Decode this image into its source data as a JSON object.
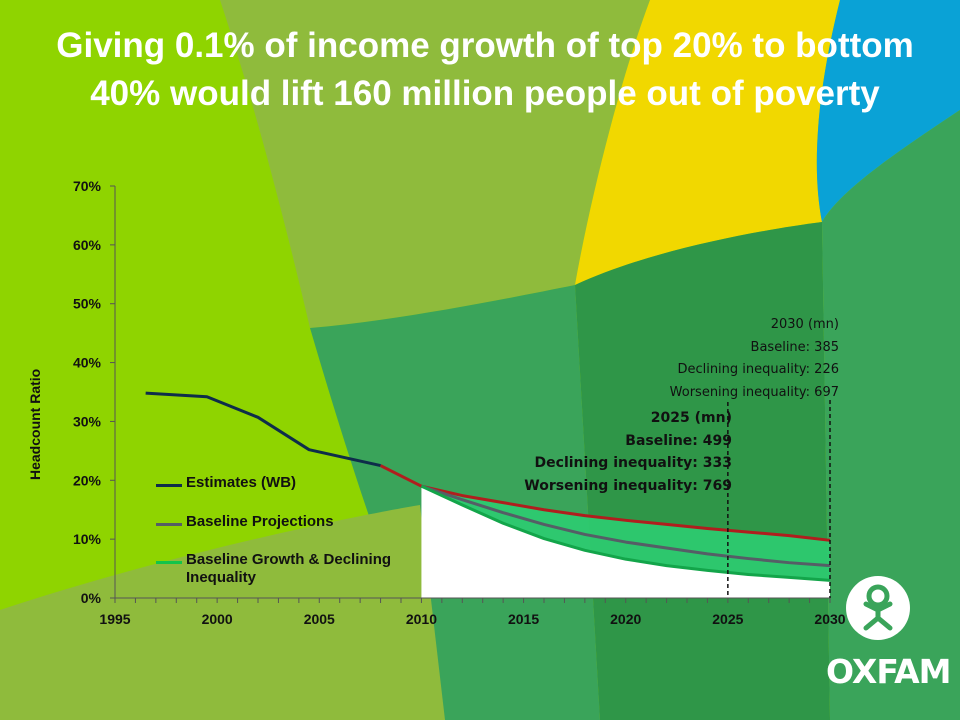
{
  "title": "Giving 0.1% of income growth of top 20% to bottom 40% would lift 160 million people out of poverty",
  "brand": {
    "name": "OXFAM",
    "colors": {
      "light_green": "#8fd400",
      "mid_green": "#8fbb3c",
      "dark_green": "#3aa45a",
      "forest_green": "#2f9648",
      "yellow": "#f1d800",
      "blue": "#0aa2d6"
    }
  },
  "chart_data": {
    "type": "line",
    "ylabel": "Headcount Ratio",
    "xlabel": "",
    "xlim": [
      1995,
      2030
    ],
    "ylim": [
      0,
      0.7
    ],
    "x_ticks": [
      "1995",
      "2000",
      "2005",
      "2010",
      "2015",
      "2020",
      "2025",
      "2030"
    ],
    "y_ticks": [
      "0%",
      "10%",
      "20%",
      "30%",
      "40%",
      "50%",
      "60%",
      "70%"
    ],
    "legend": [
      "Estimates (WB)",
      "Baseline Projections",
      "Baseline Growth & Declining Inequality"
    ],
    "series": [
      {
        "name": "Estimates (WB)",
        "color": "#0e2d4a",
        "x": [
          1996.5,
          1999.5,
          2002,
          2004.5,
          2008
        ],
        "y": [
          0.348,
          0.342,
          0.307,
          0.252,
          0.225
        ]
      },
      {
        "name": "Worsening inequality",
        "color": "#b01e1e",
        "x": [
          2008,
          2010,
          2012,
          2014,
          2016,
          2018,
          2020,
          2022,
          2024,
          2026,
          2028,
          2030
        ],
        "y": [
          0.225,
          0.19,
          0.174,
          0.162,
          0.15,
          0.14,
          0.132,
          0.125,
          0.118,
          0.112,
          0.106,
          0.098
        ]
      },
      {
        "name": "Baseline Projections",
        "color": "#555e66",
        "x": [
          2010,
          2012,
          2014,
          2016,
          2018,
          2020,
          2022,
          2024,
          2026,
          2028,
          2030
        ],
        "y": [
          0.19,
          0.167,
          0.145,
          0.125,
          0.108,
          0.095,
          0.085,
          0.075,
          0.067,
          0.06,
          0.055
        ]
      },
      {
        "name": "Baseline Growth & Declining Inequality",
        "color": "#13a54a",
        "x": [
          2010,
          2012,
          2014,
          2016,
          2018,
          2020,
          2022,
          2024,
          2026,
          2028,
          2030
        ],
        "y": [
          0.19,
          0.158,
          0.127,
          0.101,
          0.081,
          0.066,
          0.055,
          0.047,
          0.04,
          0.035,
          0.03
        ]
      }
    ],
    "markers": [
      {
        "year": 2025,
        "heading": "2025 (mn)",
        "lines": [
          "Baseline: 499",
          "Declining inequality: 333",
          "Worsening inequality: 769"
        ]
      },
      {
        "year": 2030,
        "heading": "2030 (mn)",
        "lines": [
          "Baseline: 385",
          "Declining inequality: 226",
          "Worsening inequality: 697"
        ]
      }
    ]
  }
}
